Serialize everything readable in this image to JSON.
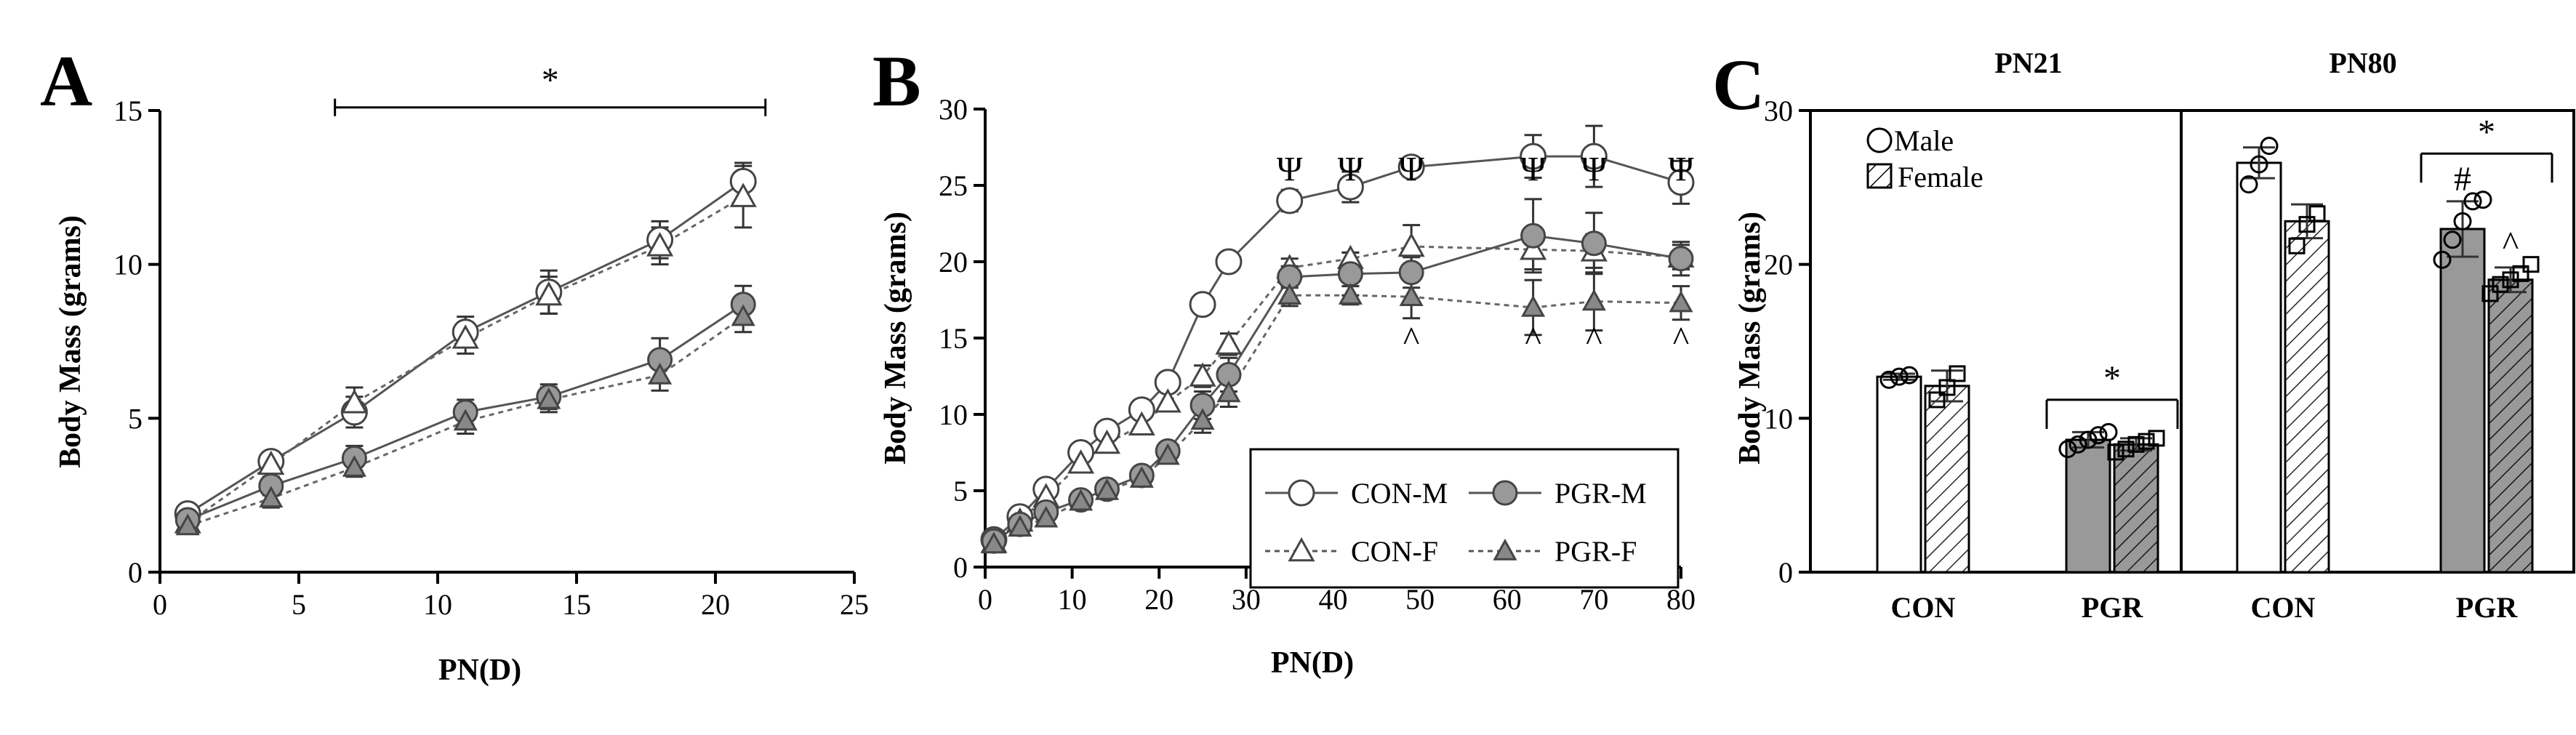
{
  "chart_data": [
    {
      "type": "line",
      "panel_label": "A",
      "xlabel": "PN(D)",
      "ylabel": "Body Mass (grams)",
      "xlim": [
        0,
        25
      ],
      "ylim": [
        0,
        15
      ],
      "xticks": [
        0,
        5,
        10,
        15,
        20,
        25
      ],
      "yticks": [
        0,
        5,
        10,
        15
      ],
      "series": [
        {
          "marker": "circle-open",
          "line": "solid",
          "x": [
            1,
            4,
            7,
            11,
            14,
            18,
            21
          ],
          "y": [
            1.9,
            3.6,
            5.2,
            7.8,
            9.1,
            10.8,
            12.7
          ],
          "err": [
            0.2,
            0.3,
            0.5,
            0.5,
            0.7,
            0.6,
            0.6
          ]
        },
        {
          "marker": "triangle-open",
          "line": "dotted",
          "x": [
            1,
            4,
            7,
            11,
            14,
            18,
            21
          ],
          "y": [
            1.6,
            3.5,
            5.5,
            7.6,
            9.0,
            10.6,
            12.2
          ],
          "err": [
            0.2,
            0.3,
            0.5,
            0.5,
            0.6,
            0.6,
            1.0
          ]
        },
        {
          "marker": "circle-filled",
          "line": "solid",
          "x": [
            1,
            4,
            7,
            11,
            14,
            18,
            21
          ],
          "y": [
            1.7,
            2.8,
            3.7,
            5.2,
            5.7,
            6.9,
            8.7
          ],
          "err": [
            0.2,
            0.3,
            0.4,
            0.4,
            0.4,
            0.7,
            0.6
          ]
        },
        {
          "marker": "triangle-filled",
          "line": "dotted",
          "x": [
            1,
            4,
            7,
            11,
            14,
            18,
            21
          ],
          "y": [
            1.5,
            2.4,
            3.4,
            4.9,
            5.6,
            6.4,
            8.3
          ],
          "err": [
            0.2,
            0.3,
            0.3,
            0.4,
            0.4,
            0.5,
            0.5
          ]
        }
      ],
      "annotations": [
        {
          "text": "*",
          "kind": "significance-bracket",
          "x_from": 6.3,
          "x_to": 21.8,
          "y": 15.1
        }
      ]
    },
    {
      "type": "line",
      "panel_label": "B",
      "xlabel": "PN(D)",
      "ylabel": "Body Mass (grams)",
      "xlim": [
        0,
        80
      ],
      "ylim": [
        0,
        30
      ],
      "xticks": [
        0,
        10,
        20,
        30,
        40,
        50,
        60,
        70,
        80
      ],
      "yticks": [
        0,
        5,
        10,
        15,
        20,
        25,
        30
      ],
      "legend": {
        "placement": "bottom-right"
      },
      "series": [
        {
          "name": "CON-M",
          "marker": "circle-open",
          "line": "solid",
          "x": [
            1,
            4,
            7,
            11,
            14,
            18,
            21,
            25,
            28,
            35,
            42,
            49,
            63,
            70,
            80
          ],
          "y": [
            1.8,
            3.3,
            5.1,
            7.5,
            8.9,
            10.3,
            12.1,
            17.2,
            20.0,
            24.0,
            24.9,
            26.2,
            26.9,
            26.9,
            25.2
          ],
          "err": [
            0,
            0,
            0,
            0,
            0,
            0,
            0,
            0,
            0,
            0.7,
            1.0,
            0.6,
            1.4,
            2.0,
            1.4
          ]
        },
        {
          "name": "CON-F",
          "marker": "triangle-open",
          "line": "dotted",
          "x": [
            1,
            4,
            7,
            11,
            14,
            18,
            21,
            25,
            28,
            35,
            42,
            49,
            63,
            70,
            80
          ],
          "y": [
            1.6,
            3.0,
            4.6,
            6.8,
            8.1,
            9.3,
            10.8,
            12.5,
            14.6,
            19.6,
            20.2,
            21.0,
            20.8,
            20.7,
            20.3
          ],
          "err": [
            0,
            0,
            0,
            0,
            0,
            0,
            0,
            0.7,
            0.7,
            0.6,
            0.4,
            1.4,
            1.3,
            1.1,
            0.8
          ]
        },
        {
          "name": "PGR-M",
          "marker": "circle-filled",
          "line": "solid",
          "x": [
            1,
            4,
            7,
            11,
            14,
            18,
            21,
            25,
            28,
            35,
            42,
            49,
            63,
            70,
            80
          ],
          "y": [
            1.7,
            2.8,
            3.6,
            4.4,
            5.1,
            6.0,
            7.6,
            10.6,
            12.6,
            19.0,
            19.2,
            19.3,
            21.7,
            21.2,
            20.2
          ],
          "err": [
            0,
            0,
            0,
            0,
            0,
            0,
            0.5,
            0.9,
            1.1,
            0.7,
            1.4,
            1.0,
            2.4,
            2.0,
            1.1
          ]
        },
        {
          "name": "PGR-F",
          "marker": "triangle-filled",
          "line": "dotted",
          "x": [
            1,
            4,
            7,
            11,
            14,
            18,
            21,
            25,
            28,
            35,
            42,
            49,
            63,
            70,
            80
          ],
          "y": [
            1.5,
            2.6,
            3.2,
            4.3,
            5.0,
            5.8,
            7.3,
            9.6,
            11.4,
            17.8,
            17.8,
            17.7,
            17.0,
            17.4,
            17.3
          ],
          "err": [
            0,
            0,
            0,
            0,
            0,
            0,
            0.5,
            0.8,
            0.9,
            0.7,
            0.6,
            1.4,
            1.8,
            1.9,
            1.1
          ]
        }
      ],
      "annotations": [
        {
          "text": "Ψ",
          "x": [
            35,
            42,
            49,
            63,
            70,
            80
          ],
          "y": 25.3
        },
        {
          "text": "^",
          "x": [
            49,
            63,
            70,
            80
          ],
          "y": 14.2
        }
      ]
    },
    {
      "type": "bar",
      "panel_label": "C",
      "ylabel": "Body Mass (grams)",
      "ylim": [
        0,
        30
      ],
      "yticks": [
        0,
        10,
        20,
        30
      ],
      "groups": [
        "PN21",
        "PN80"
      ],
      "categories": [
        "CON",
        "PGR",
        "CON",
        "PGR"
      ],
      "legend": {
        "placement": "top-left",
        "entries": [
          {
            "label": "Male",
            "swatch": "open-circle"
          },
          {
            "label": "Female",
            "swatch": "hatched-square"
          }
        ]
      },
      "bars": [
        {
          "group": 0,
          "category": 0,
          "sex": "male",
          "fill": "#ffffff",
          "value": 12.7,
          "err": 0.2,
          "points": [
            12.5,
            12.7,
            12.8
          ]
        },
        {
          "group": 0,
          "category": 0,
          "sex": "female",
          "fill": "#ffffff",
          "value": 12.1,
          "err": 1.0,
          "points": [
            11.2,
            12.0,
            12.9
          ]
        },
        {
          "group": 0,
          "category": 1,
          "sex": "male",
          "fill": "#999999",
          "value": 8.6,
          "err": 0.5,
          "points": [
            8.0,
            8.3,
            8.6,
            8.9,
            9.1
          ]
        },
        {
          "group": 0,
          "category": 1,
          "sex": "female",
          "fill": "#999999",
          "value": 8.3,
          "err": 0.4,
          "points": [
            7.8,
            8.0,
            8.3,
            8.5,
            8.7
          ]
        },
        {
          "group": 1,
          "category": 0,
          "sex": "male",
          "fill": "#ffffff",
          "value": 26.6,
          "err": 1.0,
          "points": [
            25.2,
            26.5,
            27.7
          ]
        },
        {
          "group": 1,
          "category": 0,
          "sex": "female",
          "fill": "#ffffff",
          "value": 22.8,
          "err": 1.1,
          "points": [
            21.2,
            22.6,
            23.3
          ]
        },
        {
          "group": 1,
          "category": 1,
          "sex": "male",
          "fill": "#999999",
          "value": 22.3,
          "err": 1.8,
          "points": [
            20.3,
            21.6,
            22.8,
            24.1,
            24.2
          ]
        },
        {
          "group": 1,
          "category": 1,
          "sex": "female",
          "fill": "#999999",
          "value": 19.0,
          "err": 0.8,
          "points": [
            18.1,
            18.7,
            19.0,
            19.4,
            20.0
          ]
        }
      ],
      "annotations": [
        {
          "text": "*",
          "kind": "significance-bracket",
          "group": 0,
          "category": 1,
          "y": 11.2
        },
        {
          "text": "*",
          "kind": "significance-bracket",
          "group": 1,
          "category": 1,
          "y": 27.2
        },
        {
          "text": "#",
          "group": 1,
          "category": 1,
          "sex": "male",
          "y": 24.8
        },
        {
          "text": "^",
          "group": 1,
          "category": 1,
          "sex": "female",
          "y": 20.6
        }
      ]
    }
  ]
}
